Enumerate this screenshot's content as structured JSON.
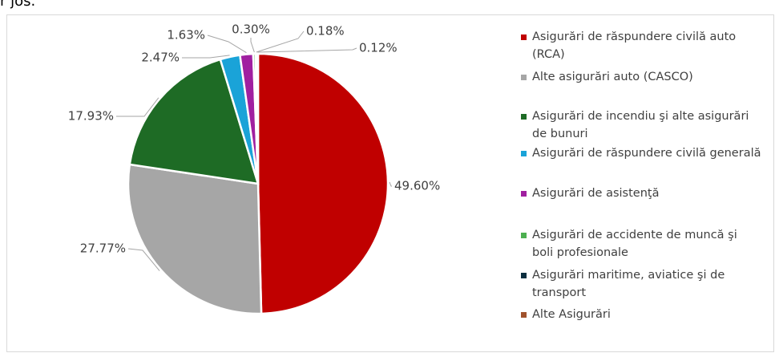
{
  "top_text": "r jos.",
  "chart_data": {
    "type": "pie",
    "categories": [
      "Asigurări de răspundere civilă auto (RCA)",
      "Alte asigurări auto (CASCO)",
      "Asigurări de incendiu şi alte asigurări de bunuri",
      "Asigurări de răspundere civilă generală",
      "Asigurări de asistenţă",
      "Asigurări de accidente de muncă şi boli profesionale",
      "Asigurări maritime, aviatice şi de transport",
      "Alte Asigurări"
    ],
    "values": [
      49.6,
      27.77,
      17.93,
      2.47,
      1.63,
      0.3,
      0.18,
      0.12
    ],
    "value_labels": [
      "49.60%",
      "27.77%",
      "17.93%",
      "2.47%",
      "1.63%",
      "0.30%",
      "0.18%",
      "0.12%"
    ],
    "colors": [
      "#c00000",
      "#a6a6a6",
      "#1e6b25",
      "#1aa3d8",
      "#a020a0",
      "#4caf50",
      "#0b2e3f",
      "#a0522d"
    ],
    "legend": "right"
  }
}
